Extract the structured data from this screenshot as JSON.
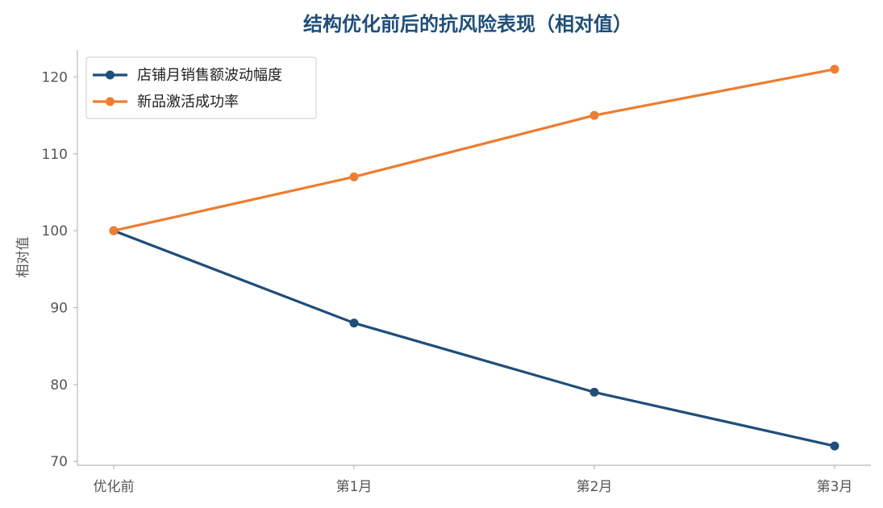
{
  "chart_data": {
    "type": "line",
    "title": "结构优化前后的抗风险表现（相对值）",
    "xlabel": "",
    "ylabel": "相对值",
    "categories": [
      "优化前",
      "第1月",
      "第2月",
      "第3月"
    ],
    "ylim": [
      69.5,
      123.5
    ],
    "yticks": [
      70,
      80,
      90,
      100,
      110,
      120
    ],
    "grid": false,
    "legend_position": "top-left",
    "series": [
      {
        "name": "店铺月销售额波动幅度",
        "values": [
          100,
          88,
          79,
          72
        ],
        "color": "#1f4e79"
      },
      {
        "name": "新品激活成功率",
        "values": [
          100,
          107,
          115,
          121
        ],
        "color": "#ed7d31"
      }
    ],
    "title_color": "#1f4e79",
    "axis_color": "#bbbbbb"
  }
}
